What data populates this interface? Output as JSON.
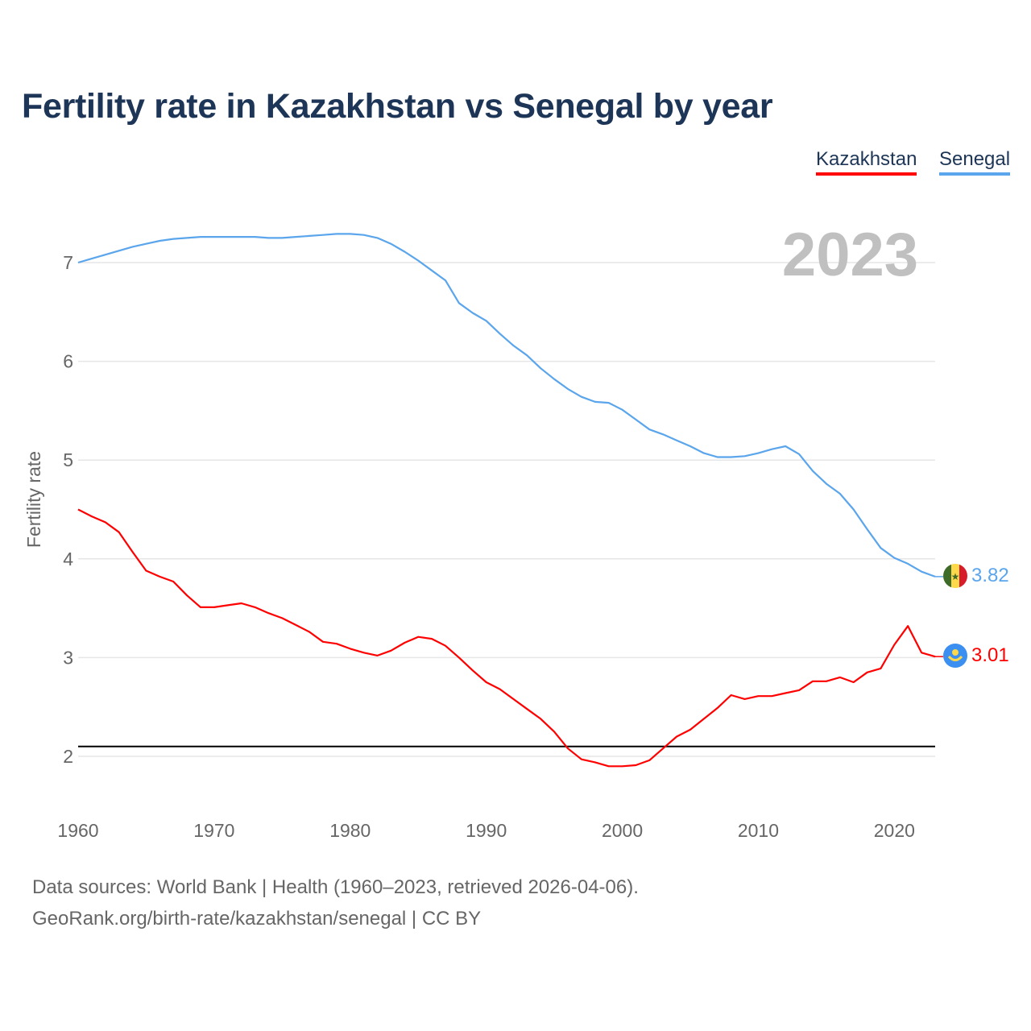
{
  "title": "Fertility rate in Kazakhstan vs Senegal by year",
  "legend": [
    {
      "label": "Kazakhstan",
      "color": "#ff0000"
    },
    {
      "label": "Senegal",
      "color": "#5aa5ec"
    }
  ],
  "year_watermark": "2023",
  "end_labels": {
    "kazakhstan": "3.01",
    "senegal": "3.82"
  },
  "footer": {
    "line1": "Data sources: World Bank | Health (1960–2023, retrieved 2026-04-06).",
    "line2": "GeoRank.org/birth-rate/kazakhstan/senegal | CC BY"
  },
  "chart_data": {
    "type": "line",
    "title": "Fertility rate in Kazakhstan vs Senegal by year",
    "xlabel": "",
    "ylabel": "Fertility rate",
    "xlim": [
      1960,
      2023
    ],
    "ylim": [
      1.5,
      7.5
    ],
    "x_ticks": [
      "1960",
      "1970",
      "1980",
      "1990",
      "2000",
      "2010",
      "2020"
    ],
    "y_ticks": [
      "2",
      "3",
      "4",
      "5",
      "6",
      "7"
    ],
    "grid": true,
    "legend_position": "top-right",
    "reference_line": 2.1,
    "x": [
      1960,
      1961,
      1962,
      1963,
      1964,
      1965,
      1966,
      1967,
      1968,
      1969,
      1970,
      1971,
      1972,
      1973,
      1974,
      1975,
      1976,
      1977,
      1978,
      1979,
      1980,
      1981,
      1982,
      1983,
      1984,
      1985,
      1986,
      1987,
      1988,
      1989,
      1990,
      1991,
      1992,
      1993,
      1994,
      1995,
      1996,
      1997,
      1998,
      1999,
      2000,
      2001,
      2002,
      2003,
      2004,
      2005,
      2006,
      2007,
      2008,
      2009,
      2010,
      2011,
      2012,
      2013,
      2014,
      2015,
      2016,
      2017,
      2018,
      2019,
      2020,
      2021,
      2022,
      2023
    ],
    "series": [
      {
        "name": "Kazakhstan",
        "color": "#ff0000",
        "values": [
          4.5,
          4.43,
          4.37,
          4.27,
          4.07,
          3.88,
          3.82,
          3.77,
          3.63,
          3.51,
          3.51,
          3.53,
          3.55,
          3.51,
          3.45,
          3.4,
          3.33,
          3.26,
          3.16,
          3.14,
          3.09,
          3.05,
          3.02,
          3.07,
          3.15,
          3.21,
          3.19,
          3.12,
          3.0,
          2.87,
          2.75,
          2.68,
          2.58,
          2.48,
          2.38,
          2.25,
          2.08,
          1.97,
          1.94,
          1.9,
          1.9,
          1.91,
          1.96,
          2.08,
          2.2,
          2.27,
          2.38,
          2.49,
          2.62,
          2.58,
          2.61,
          2.61,
          2.64,
          2.67,
          2.76,
          2.76,
          2.8,
          2.75,
          2.85,
          2.89,
          3.13,
          3.32,
          3.05,
          3.01
        ]
      },
      {
        "name": "Senegal",
        "color": "#5aa5ec",
        "values": [
          7.0,
          7.04,
          7.08,
          7.12,
          7.16,
          7.19,
          7.22,
          7.24,
          7.25,
          7.26,
          7.26,
          7.26,
          7.26,
          7.26,
          7.25,
          7.25,
          7.26,
          7.27,
          7.28,
          7.29,
          7.29,
          7.28,
          7.25,
          7.19,
          7.11,
          7.02,
          6.92,
          6.82,
          6.59,
          6.49,
          6.41,
          6.28,
          6.16,
          6.06,
          5.93,
          5.82,
          5.72,
          5.64,
          5.59,
          5.58,
          5.51,
          5.41,
          5.31,
          5.26,
          5.2,
          5.14,
          5.07,
          5.03,
          5.03,
          5.04,
          5.07,
          5.11,
          5.14,
          5.06,
          4.89,
          4.76,
          4.66,
          4.5,
          4.3,
          4.11,
          4.01,
          3.95,
          3.87,
          3.82
        ]
      }
    ]
  }
}
